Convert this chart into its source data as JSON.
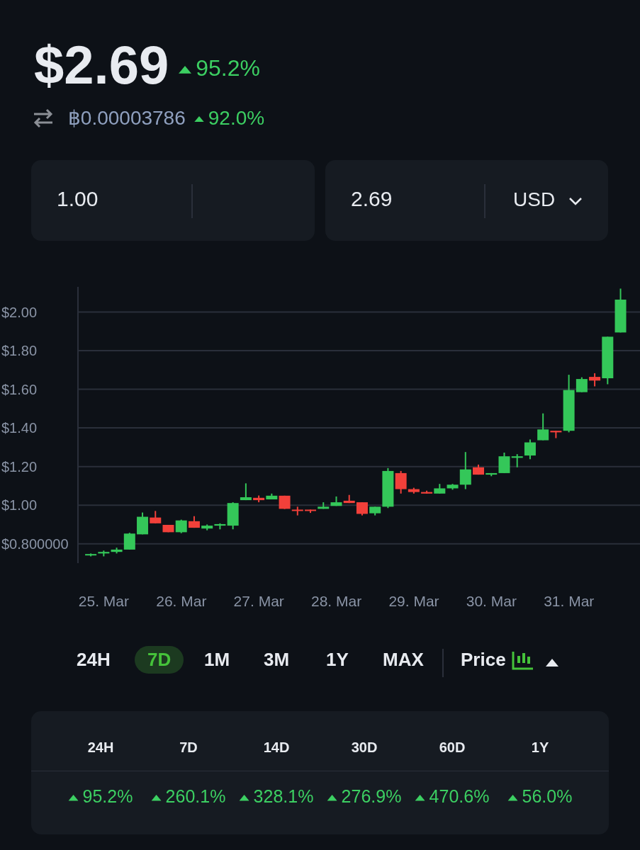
{
  "chart_data": {
    "type": "candlestick",
    "title": "$2.69",
    "annotations": [
      "95.2%",
      "฿0.00003786",
      "92.0%",
      "1.00",
      "2.69",
      "USD",
      "24H",
      "7D",
      "1M",
      "3M",
      "1Y",
      "MAX",
      "Price",
      "24H",
      "7D",
      "14D",
      "30D",
      "60D",
      "1Y",
      "95.2%",
      "260.1%",
      "328.1%",
      "276.9%",
      "470.6%",
      "56.0%"
    ],
    "x": [
      "--03-24T20:00",
      "--03-25T00:00",
      "--03-25T04:00",
      "--03-25T08:00",
      "--03-25T12:00",
      "--03-25T16:00",
      "--03-25T20:00",
      "--03-26T00:00",
      "--03-26T04:00",
      "--03-26T08:00",
      "--03-26T12:00",
      "--03-26T16:00",
      "--03-26T20:00",
      "--03-27T00:00",
      "--03-27T04:00",
      "--03-27T08:00",
      "--03-27T12:00",
      "--03-27T16:00",
      "--03-27T20:00",
      "--03-28T00:00",
      "--03-28T04:00",
      "--03-28T08:00",
      "--03-28T12:00",
      "--03-28T16:00",
      "--03-28T20:00",
      "--03-29T00:00",
      "--03-29T04:00",
      "--03-29T08:00",
      "--03-29T12:00",
      "--03-29T16:00",
      "--03-29T20:00",
      "--03-30T00:00",
      "--03-30T04:00",
      "--03-30T08:00",
      "--03-30T12:00",
      "--03-30T16:00",
      "--03-30T20:00",
      "--03-31T00:00",
      "--03-31T04:00",
      "--03-31T08:00",
      "--03-31T12:00",
      "--03-31T16:00"
    ],
    "ohlc": [
      [
        0.74,
        0.75,
        0.735,
        0.747
      ],
      [
        0.75,
        0.765,
        0.735,
        0.758
      ],
      [
        0.758,
        0.78,
        0.75,
        0.77
      ],
      [
        0.77,
        0.857,
        0.77,
        0.853
      ],
      [
        0.849,
        0.962,
        0.849,
        0.94
      ],
      [
        0.936,
        0.97,
        0.906,
        0.906
      ],
      [
        0.898,
        0.898,
        0.86,
        0.86
      ],
      [
        0.86,
        0.925,
        0.855,
        0.921
      ],
      [
        0.917,
        0.943,
        0.883,
        0.883
      ],
      [
        0.879,
        0.9,
        0.87,
        0.894
      ],
      [
        0.894,
        0.906,
        0.875,
        0.902
      ],
      [
        0.894,
        1.015,
        0.875,
        1.011
      ],
      [
        1.026,
        1.113,
        1.026,
        1.041
      ],
      [
        1.038,
        1.05,
        1.015,
        1.026
      ],
      [
        1.03,
        1.06,
        1.03,
        1.049
      ],
      [
        1.049,
        1.049,
        0.98,
        0.981
      ],
      [
        0.977,
        0.992,
        0.947,
        0.973
      ],
      [
        0.977,
        0.977,
        0.96,
        0.973
      ],
      [
        0.981,
        1.015,
        0.981,
        0.992
      ],
      [
        0.996,
        1.045,
        0.996,
        1.015
      ],
      [
        1.023,
        1.053,
        1.011,
        1.011
      ],
      [
        1.015,
        1.015,
        0.947,
        0.955
      ],
      [
        0.958,
        0.992,
        0.947,
        0.992
      ],
      [
        0.992,
        1.192,
        0.985,
        1.177
      ],
      [
        1.166,
        1.177,
        1.06,
        1.083
      ],
      [
        1.083,
        1.09,
        1.06,
        1.068
      ],
      [
        1.068,
        1.075,
        1.06,
        1.06
      ],
      [
        1.06,
        1.11,
        1.06,
        1.087
      ],
      [
        1.087,
        1.11,
        1.08,
        1.106
      ],
      [
        1.106,
        1.275,
        1.083,
        1.185
      ],
      [
        1.196,
        1.21,
        1.158,
        1.158
      ],
      [
        1.158,
        1.166,
        1.15,
        1.166
      ],
      [
        1.166,
        1.272,
        1.166,
        1.253
      ],
      [
        1.245,
        1.264,
        1.196,
        1.253
      ],
      [
        1.257,
        1.34,
        1.238,
        1.325
      ],
      [
        1.336,
        1.475,
        1.336,
        1.392
      ],
      [
        1.385,
        1.385,
        1.347,
        1.377
      ],
      [
        1.385,
        1.675,
        1.377,
        1.596
      ],
      [
        1.585,
        1.662,
        1.585,
        1.653
      ],
      [
        1.664,
        1.683,
        1.615,
        1.645
      ],
      [
        1.657,
        1.872,
        1.626,
        1.872
      ],
      [
        1.894,
        2.121,
        1.894,
        2.064
      ]
    ],
    "colors": [
      "#34c759",
      "#34c759",
      "#34c759",
      "#34c759",
      "#34c759",
      "#f2403a",
      "#f2403a",
      "#34c759",
      "#f2403a",
      "#34c759",
      "#34c759",
      "#34c759",
      "#34c759",
      "#f2403a",
      "#34c759",
      "#f2403a",
      "#f2403a",
      "#f2403a",
      "#34c759",
      "#34c759",
      "#f2403a",
      "#f2403a",
      "#34c759",
      "#34c759",
      "#f2403a",
      "#f2403a",
      "#f2403a",
      "#34c759",
      "#34c759",
      "#34c759",
      "#f2403a",
      "#34c759",
      "#34c759",
      "#34c759",
      "#34c759",
      "#34c759",
      "#f2403a",
      "#34c759",
      "#34c759",
      "#f2403a",
      "#34c759",
      "#34c759"
    ],
    "xlim": [
      "--03-24T16:00",
      "--03-31T22:00"
    ],
    "xticks": [
      {
        "value": "--03-25",
        "label": "25. Mar"
      },
      {
        "value": "--03-26",
        "label": "26. Mar"
      },
      {
        "value": "--03-27",
        "label": "27. Mar"
      },
      {
        "value": "--03-28",
        "label": "28. Mar"
      },
      {
        "value": "--03-29",
        "label": "29. Mar"
      },
      {
        "value": "--03-30",
        "label": "30. Mar"
      },
      {
        "value": "--03-31",
        "label": "31. Mar"
      }
    ],
    "ylim": [
      0.7,
      2.13
    ],
    "yticks": [
      {
        "value": 0.8,
        "label": "$0.800000"
      },
      {
        "value": 1.0,
        "label": "$1.00"
      },
      {
        "value": 1.2,
        "label": "$1.20"
      },
      {
        "value": 1.4,
        "label": "$1.40"
      },
      {
        "value": 1.6,
        "label": "$1.60"
      },
      {
        "value": 1.8,
        "label": "$1.80"
      },
      {
        "value": 2.0,
        "label": "$2.00"
      }
    ],
    "grid": "y"
  }
}
